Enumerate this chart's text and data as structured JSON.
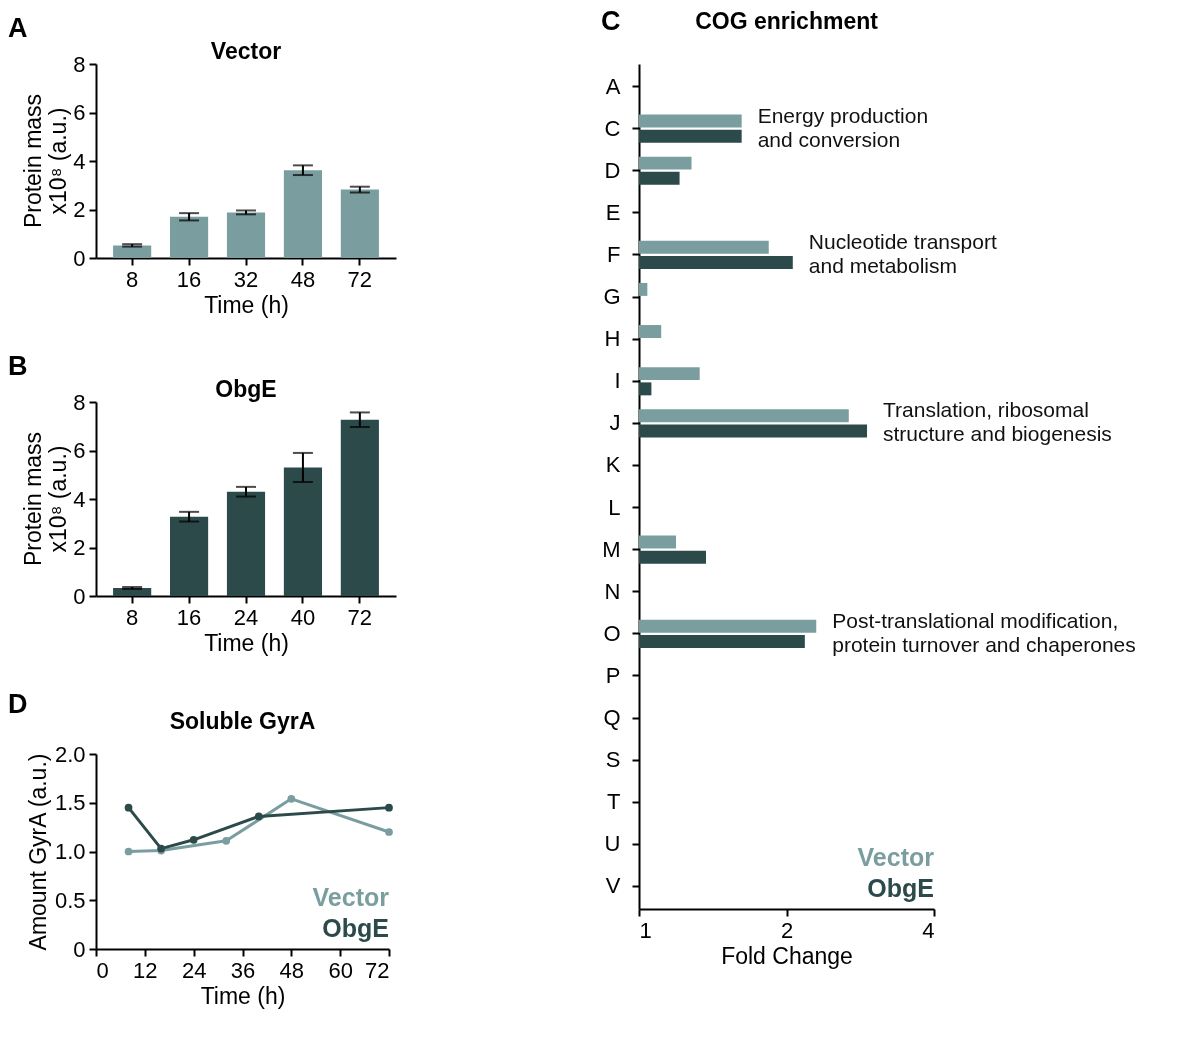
{
  "chart_data": [
    {
      "type": "bar",
      "title": "Vector",
      "annotations": [
        "A"
      ],
      "categories": [
        "8",
        "16",
        "32",
        "48",
        "72"
      ],
      "values": [
        0.52,
        1.7,
        1.88,
        3.62,
        2.82
      ],
      "errors": [
        0.05,
        0.15,
        0.08,
        0.2,
        0.12
      ],
      "color": "#7a9e9f",
      "xlabel": "Time (h)",
      "ylabel": "Protein mass\nx10⁸ (a.u.)",
      "ylim": [
        0,
        8
      ],
      "yticks": [
        0,
        2,
        4,
        6,
        8
      ]
    },
    {
      "type": "bar",
      "title": "ObgE",
      "annotations": [
        "B"
      ],
      "categories": [
        "8",
        "16",
        "24",
        "40",
        "72"
      ],
      "values": [
        0.33,
        3.27,
        4.3,
        5.3,
        7.27
      ],
      "errors": [
        0.04,
        0.2,
        0.2,
        0.6,
        0.3
      ],
      "color": "#2c4a4a",
      "xlabel": "Time (h)",
      "ylabel": "Protein mass\nx10⁸ (a.u.)",
      "ylim": [
        0,
        8
      ],
      "yticks": [
        0,
        2,
        4,
        6,
        8
      ]
    },
    {
      "type": "line",
      "title": "Soluble GyrA",
      "annotations": [
        "D"
      ],
      "xlabel": "Time (h)",
      "ylabel": "Amount GyrA (a.u.)",
      "xlim": [
        0,
        72
      ],
      "xticks": [
        0,
        12,
        24,
        36,
        48,
        60,
        72
      ],
      "ylim": [
        0,
        2
      ],
      "yticks": [
        0,
        {
          "value": 0.5,
          "label": "0.5"
        },
        {
          "value": 1,
          "label": "1.0"
        },
        {
          "value": 1.5,
          "label": "1.5"
        },
        {
          "value": 2,
          "label": "2.0"
        }
      ],
      "marker": "circle",
      "legend": "bottom right",
      "series": [
        {
          "name": "Vector",
          "color": "#7a9e9f",
          "x": [
            8,
            16,
            32,
            48,
            72
          ],
          "values": [
            1.0,
            1.01,
            1.11,
            1.54,
            1.2
          ]
        },
        {
          "name": "ObgE",
          "color": "#2c4a4a",
          "x": [
            8,
            16,
            24,
            40,
            72
          ],
          "values": [
            1.45,
            1.03,
            1.12,
            1.36,
            1.45
          ]
        }
      ]
    },
    {
      "type": "bar",
      "orientation": "horizontal",
      "title": "COG enrichment",
      "xlabel": "Fold Change",
      "log": "x",
      "xlim": [
        1,
        4
      ],
      "xticks": [
        1,
        2,
        4
      ],
      "legend": "bottom right",
      "categories": [
        "A",
        "C",
        "D",
        "E",
        "F",
        "G",
        "H",
        "I",
        "J",
        "K",
        "L",
        "M",
        "N",
        "O",
        "P",
        "Q",
        "S",
        "T",
        "U",
        "V"
      ],
      "annotations": [
        "C",
        {
          "text": "Energy production\nand conversion",
          "x": 1.62,
          "y": "C"
        },
        {
          "text": "Nucleotide transport\nand metabolism",
          "x": 2.06,
          "y": "F"
        },
        {
          "text": "Translation, ribosomal\nstructure and biogenesis",
          "x": 2.92,
          "y": "J"
        },
        {
          "text": "Post-translational modification,\nprotein turnover and chaperones",
          "x": 2.3,
          "y": "O"
        }
      ],
      "series": [
        {
          "name": "Vector",
          "color": "#7a9e9f",
          "values": [
            null,
            1.62,
            1.28,
            null,
            1.84,
            1.04,
            1.11,
            1.33,
            2.68,
            null,
            null,
            1.19,
            null,
            2.3,
            null,
            null,
            null,
            null,
            null,
            null
          ]
        },
        {
          "name": "ObgE",
          "color": "#2c4a4a",
          "values": [
            null,
            1.62,
            1.21,
            null,
            2.06,
            null,
            null,
            1.06,
            2.92,
            null,
            null,
            1.37,
            null,
            2.18,
            null,
            null,
            null,
            null,
            null,
            null
          ]
        }
      ]
    }
  ]
}
